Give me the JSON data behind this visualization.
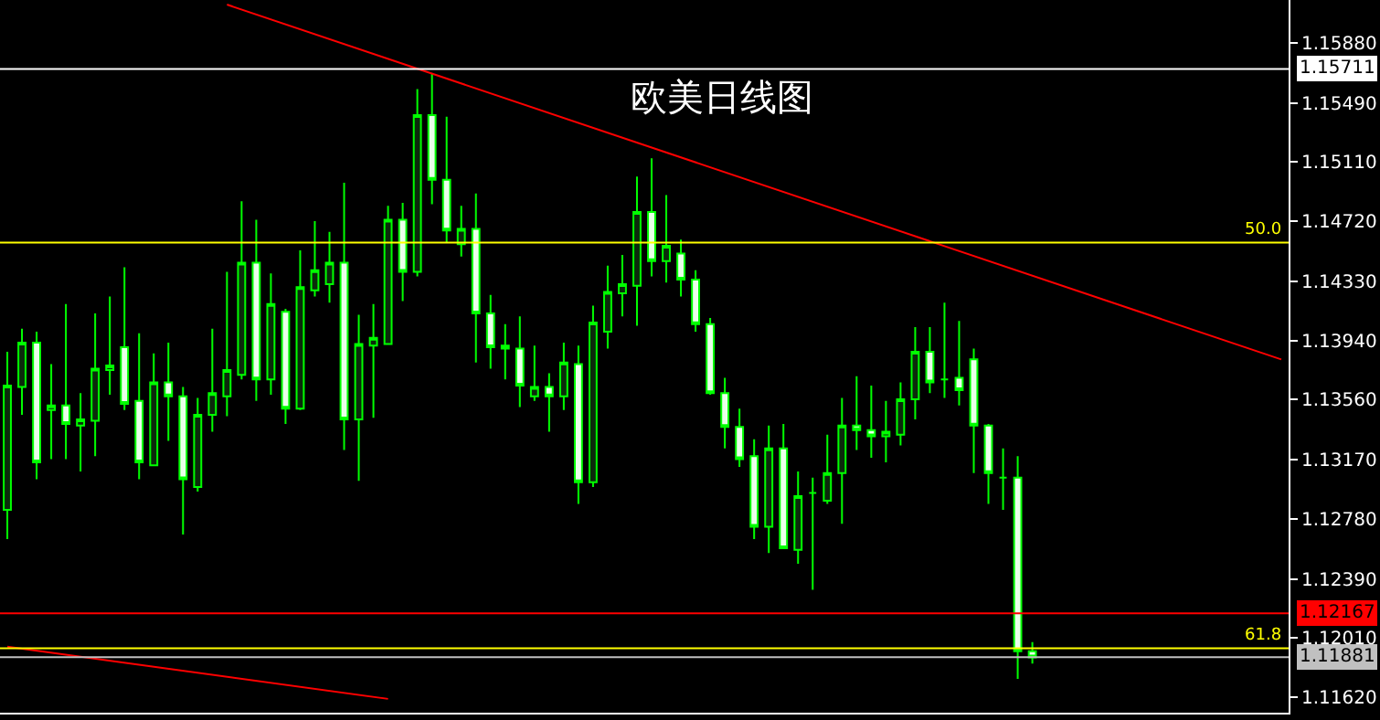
{
  "chart_data": {
    "type": "candlestick",
    "title": "欧美日线图",
    "categories": [
      null,
      null,
      null,
      null,
      null,
      null,
      null,
      null,
      null,
      null,
      null,
      null,
      null,
      null,
      null,
      null,
      null,
      null,
      null,
      null,
      null,
      null,
      null,
      null,
      null,
      null,
      null,
      null,
      null,
      null,
      null,
      null,
      null,
      null,
      null,
      null,
      null,
      null,
      null,
      null,
      null,
      null,
      null,
      null,
      null,
      null,
      null,
      null,
      null,
      null,
      null,
      null,
      null,
      null,
      null,
      null,
      null,
      null,
      null,
      null,
      null,
      null,
      null,
      null,
      null,
      null,
      null,
      null,
      null,
      null,
      null,
      null,
      null,
      null,
      null,
      null,
      null,
      null,
      null,
      null,
      null,
      null,
      null,
      null,
      null,
      null,
      null,
      null
    ],
    "color": "#00ff00",
    "ohlc": [
      [
        1.1284,
        1.1387,
        1.1265,
        1.1365
      ],
      [
        1.1364,
        1.1402,
        1.1346,
        1.1393
      ],
      [
        1.1393,
        1.14,
        1.1304,
        1.1315
      ],
      [
        1.1349,
        1.1379,
        1.1317,
        1.1352
      ],
      [
        1.1352,
        1.1418,
        1.1317,
        1.134
      ],
      [
        1.1339,
        1.136,
        1.1309,
        1.1343
      ],
      [
        1.1342,
        1.1412,
        1.1319,
        1.1376
      ],
      [
        1.1375,
        1.1423,
        1.1359,
        1.1378
      ],
      [
        1.139,
        1.1442,
        1.1349,
        1.1353
      ],
      [
        1.1355,
        1.1399,
        1.1304,
        1.1315
      ],
      [
        1.1313,
        1.1386,
        1.1313,
        1.1367
      ],
      [
        1.1367,
        1.1393,
        1.1329,
        1.1358
      ],
      [
        1.1358,
        1.1364,
        1.1268,
        1.1304
      ],
      [
        1.1299,
        1.1357,
        1.1296,
        1.1346
      ],
      [
        1.1346,
        1.1402,
        1.1335,
        1.136
      ],
      [
        1.1358,
        1.1439,
        1.1345,
        1.1375
      ],
      [
        1.1372,
        1.1485,
        1.1369,
        1.1445
      ],
      [
        1.1445,
        1.1473,
        1.1355,
        1.1369
      ],
      [
        1.1369,
        1.1438,
        1.1359,
        1.1418
      ],
      [
        1.1413,
        1.1415,
        1.134,
        1.135
      ],
      [
        1.135,
        1.1453,
        1.1349,
        1.1429
      ],
      [
        1.1427,
        1.1472,
        1.1423,
        1.144
      ],
      [
        1.1431,
        1.1465,
        1.1419,
        1.1445
      ],
      [
        1.1445,
        1.1497,
        1.1323,
        1.1343
      ],
      [
        1.1343,
        1.1411,
        1.1303,
        1.1392
      ],
      [
        1.1391,
        1.1418,
        1.1344,
        1.1396
      ],
      [
        1.1392,
        1.1482,
        1.1392,
        1.1473
      ],
      [
        1.1473,
        1.1484,
        1.142,
        1.1439
      ],
      [
        1.1439,
        1.1558,
        1.1436,
        1.1541
      ],
      [
        1.1541,
        1.1568,
        1.1483,
        1.1499
      ],
      [
        1.1499,
        1.154,
        1.1458,
        1.1466
      ],
      [
        1.1457,
        1.1482,
        1.1449,
        1.1467
      ],
      [
        1.1467,
        1.149,
        1.138,
        1.1412
      ],
      [
        1.1412,
        1.1424,
        1.1376,
        1.139
      ],
      [
        1.1391,
        1.1405,
        1.1369,
        1.1389
      ],
      [
        1.1389,
        1.141,
        1.1351,
        1.1365
      ],
      [
        1.1358,
        1.1391,
        1.1355,
        1.1364
      ],
      [
        1.1364,
        1.1373,
        1.1335,
        1.1358
      ],
      [
        1.1358,
        1.1393,
        1.1349,
        1.138
      ],
      [
        1.1379,
        1.1391,
        1.1288,
        1.1302
      ],
      [
        1.1302,
        1.1417,
        1.1299,
        1.1406
      ],
      [
        1.14,
        1.1443,
        1.1389,
        1.1426
      ],
      [
        1.1425,
        1.145,
        1.141,
        1.1431
      ],
      [
        1.143,
        1.1501,
        1.1404,
        1.1478
      ],
      [
        1.1478,
        1.1513,
        1.1436,
        1.1446
      ],
      [
        1.1446,
        1.1489,
        1.1432,
        1.1456
      ],
      [
        1.1451,
        1.146,
        1.1423,
        1.1434
      ],
      [
        1.1434,
        1.144,
        1.14,
        1.1405
      ],
      [
        1.1405,
        1.1409,
        1.1359,
        1.136
      ],
      [
        1.136,
        1.137,
        1.1324,
        1.1338
      ],
      [
        1.1338,
        1.135,
        1.1312,
        1.1317
      ],
      [
        1.1319,
        1.133,
        1.1265,
        1.1273
      ],
      [
        1.1273,
        1.1339,
        1.1256,
        1.1324
      ],
      [
        1.1324,
        1.134,
        1.1259,
        1.1259
      ],
      [
        1.1258,
        1.1309,
        1.1249,
        1.1293
      ],
      [
        1.1295,
        1.1305,
        1.1232,
        1.1295
      ],
      [
        1.129,
        1.1333,
        1.1288,
        1.1308
      ],
      [
        1.1308,
        1.1357,
        1.1275,
        1.1339
      ],
      [
        1.1339,
        1.1371,
        1.1323,
        1.1336
      ],
      [
        1.1336,
        1.1365,
        1.1318,
        1.1332
      ],
      [
        1.1332,
        1.1355,
        1.1315,
        1.1335
      ],
      [
        1.1333,
        1.1367,
        1.1326,
        1.1356
      ],
      [
        1.1356,
        1.1403,
        1.1343,
        1.1387
      ],
      [
        1.1387,
        1.1403,
        1.136,
        1.1367
      ],
      [
        1.1369,
        1.1419,
        1.1357,
        1.1369
      ],
      [
        1.137,
        1.1407,
        1.1352,
        1.1362
      ],
      [
        1.1382,
        1.1389,
        1.1308,
        1.1339
      ],
      [
        1.1339,
        1.134,
        1.1288,
        1.1308
      ],
      [
        1.1305,
        1.1324,
        1.1284,
        1.1305
      ],
      [
        1.1305,
        1.1319,
        1.1174,
        1.1192
      ],
      [
        1.1192,
        1.1198,
        1.1184,
        1.1188
      ],
      null,
      null,
      null,
      null,
      null,
      null,
      null,
      null,
      null,
      null,
      null,
      null,
      null,
      null,
      null,
      null,
      null
    ],
    "series": [
      {
        "type": "line",
        "color": "#ff0000",
        "values": [
          null,
          null,
          null,
          null,
          null,
          null,
          null,
          null,
          null,
          null,
          null,
          null,
          null,
          null,
          null,
          1.1613,
          null,
          null,
          null,
          null,
          null,
          null,
          null,
          null,
          null,
          null,
          null,
          null,
          null,
          null,
          null,
          null,
          null,
          null,
          null,
          null,
          null,
          null,
          null,
          null,
          null,
          null,
          null,
          null,
          null,
          null,
          null,
          null,
          null,
          null,
          null,
          null,
          null,
          null,
          null,
          null,
          null,
          null,
          null,
          null,
          null,
          null,
          null,
          null,
          null,
          null,
          null,
          null,
          null,
          null,
          null,
          null,
          null,
          null,
          null,
          null,
          null,
          null,
          null,
          null,
          null,
          null,
          null,
          null,
          null,
          null,
          null,
          1.1382
        ]
      },
      {
        "type": "line",
        "color": "#ff0000",
        "values": [
          1.1195,
          null,
          null,
          null,
          null,
          null,
          null,
          null,
          null,
          null,
          null,
          null,
          null,
          null,
          null,
          null,
          null,
          null,
          null,
          null,
          null,
          null,
          null,
          null,
          null,
          null,
          1.1161,
          null,
          null,
          null,
          null,
          null,
          null,
          null,
          null,
          null,
          null,
          null,
          null,
          null,
          null,
          null,
          null,
          null,
          null,
          null,
          null,
          null,
          null,
          null,
          null,
          null,
          null,
          null,
          null,
          null,
          null,
          null,
          null,
          null,
          null,
          null,
          null,
          null,
          null,
          null,
          null,
          null,
          null,
          null,
          null,
          null,
          null,
          null,
          null,
          null,
          null,
          null,
          null,
          null,
          null,
          null,
          null,
          null,
          null,
          null,
          null,
          null
        ]
      }
    ],
    "ref_lines": [
      {
        "axis": "y",
        "value": 1.15711,
        "label": "1.15711",
        "color": "#ffffff"
      },
      {
        "axis": "y",
        "value": 1.1458,
        "color": "#ffff00"
      },
      {
        "axis": "y",
        "value": 1.12167,
        "label": "1.12167",
        "color": "#ff0000"
      },
      {
        "axis": "y",
        "value": 1.1194,
        "color": "#ffff00"
      },
      {
        "axis": "y",
        "value": 1.11881,
        "label": "1.11881",
        "color": "#c0c0c0"
      }
    ],
    "annotations": [
      {
        "text": "50.0",
        "y": 1.1458
      },
      {
        "text": "61.8",
        "y": 1.1194
      }
    ],
    "ylim": [
      1.1152,
      1.1616
    ],
    "yticks": [
      {
        "value": 1.1588,
        "label": "1.15880"
      },
      {
        "value": 1.1549,
        "label": "1.15490"
      },
      {
        "value": 1.1511,
        "label": "1.15110"
      },
      {
        "value": 1.1472,
        "label": "1.14720"
      },
      {
        "value": 1.1433,
        "label": "1.14330"
      },
      {
        "value": 1.1394,
        "label": "1.13940"
      },
      {
        "value": 1.1356,
        "label": "1.13560"
      },
      {
        "value": 1.1317,
        "label": "1.13170"
      },
      {
        "value": 1.1278,
        "label": "1.12780"
      },
      {
        "value": 1.1239,
        "label": "1.12390"
      },
      {
        "value": 1.1201,
        "label": "1.12010"
      },
      {
        "value": 1.1162,
        "label": "1.11620"
      }
    ],
    "tick_labels": "y"
  }
}
